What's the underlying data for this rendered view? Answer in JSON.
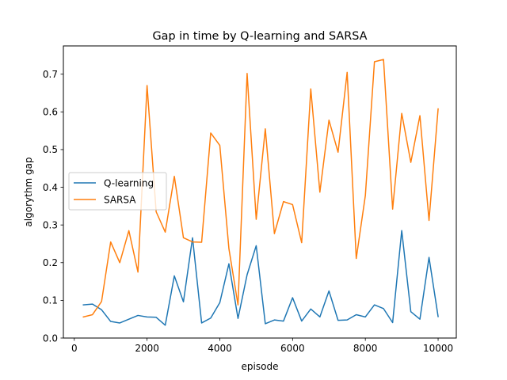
{
  "chart_data": {
    "type": "line",
    "title": "Gap in time by Q-learning and SARSA",
    "xlabel": "episode",
    "ylabel": "algorythm gap",
    "xlim": [
      -300,
      10500
    ],
    "ylim": [
      0,
      0.775
    ],
    "xticks": [
      0,
      2000,
      4000,
      6000,
      8000,
      10000
    ],
    "xtick_labels": [
      "0",
      "2000",
      "4000",
      "6000",
      "8000",
      "10000"
    ],
    "yticks": [
      0.0,
      0.1,
      0.2,
      0.3,
      0.4,
      0.5,
      0.6,
      0.7
    ],
    "ytick_labels": [
      "0.0",
      "0.1",
      "0.2",
      "0.3",
      "0.4",
      "0.5",
      "0.6",
      "0.7"
    ],
    "grid": false,
    "legend_position": "center-left",
    "x": [
      250,
      500,
      750,
      1000,
      1250,
      1500,
      1750,
      2000,
      2250,
      2500,
      2750,
      3000,
      3250,
      3500,
      3750,
      4000,
      4250,
      4500,
      4750,
      5000,
      5250,
      5500,
      5750,
      6000,
      6250,
      6500,
      6750,
      7000,
      7250,
      7500,
      7750,
      8000,
      8250,
      8500,
      8750,
      9000,
      9250,
      9500,
      9750,
      10000
    ],
    "series": [
      {
        "name": "Q-learning",
        "color": "#1f77b4",
        "values": [
          0.088,
          0.09,
          0.075,
          0.044,
          0.04,
          0.05,
          0.06,
          0.056,
          0.055,
          0.034,
          0.165,
          0.096,
          0.266,
          0.04,
          0.053,
          0.094,
          0.197,
          0.052,
          0.168,
          0.245,
          0.038,
          0.048,
          0.045,
          0.107,
          0.045,
          0.077,
          0.056,
          0.125,
          0.047,
          0.048,
          0.062,
          0.056,
          0.088,
          0.078,
          0.041,
          0.285,
          0.07,
          0.05,
          0.214,
          0.057
        ]
      },
      {
        "name": "SARSA",
        "color": "#ff7f0e",
        "values": [
          0.056,
          0.062,
          0.097,
          0.255,
          0.2,
          0.285,
          0.175,
          0.67,
          0.335,
          0.281,
          0.429,
          0.266,
          0.255,
          0.254,
          0.544,
          0.511,
          0.237,
          0.088,
          0.702,
          0.315,
          0.555,
          0.277,
          0.362,
          0.354,
          0.253,
          0.661,
          0.387,
          0.578,
          0.493,
          0.705,
          0.211,
          0.378,
          0.733,
          0.739,
          0.342,
          0.596,
          0.466,
          0.59,
          0.312,
          0.608
        ]
      }
    ]
  }
}
